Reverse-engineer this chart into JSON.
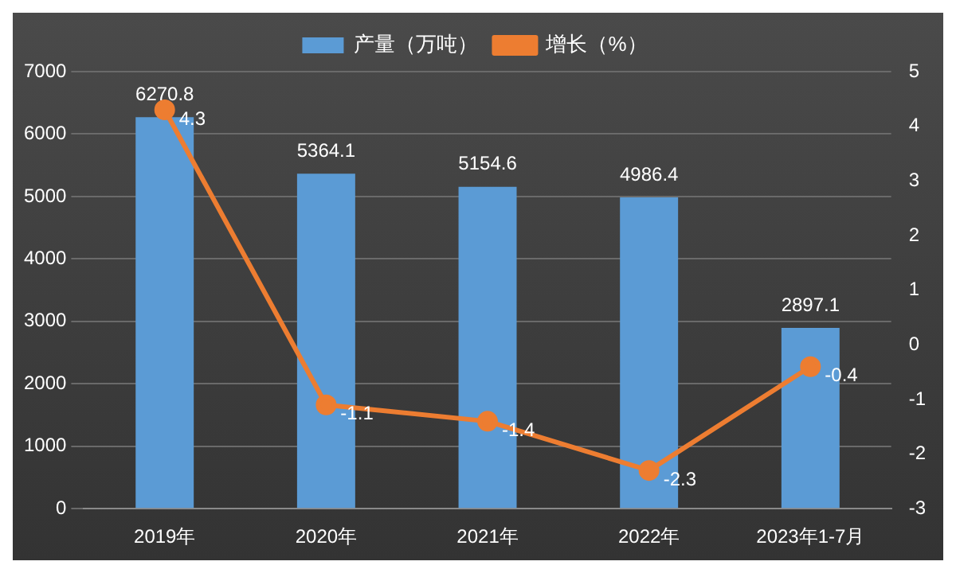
{
  "chart_data": {
    "type": "bar",
    "categories": [
      "2019年",
      "2020年",
      "2021年",
      "2022年",
      "2023年1-7月"
    ],
    "series": [
      {
        "name": "产量（万吨）",
        "color": "#5b9bd5",
        "values": [
          6270.8,
          5364.1,
          5154.6,
          4986.4,
          2897.1
        ]
      },
      {
        "name": "增长（%）",
        "type": "line",
        "axis": "y2",
        "color": "#ed7d31",
        "values": [
          4.3,
          -1.1,
          -1.4,
          -2.3,
          -0.4
        ]
      }
    ],
    "ylim": [
      0,
      7000
    ],
    "yticks": [
      0,
      1000,
      2000,
      3000,
      4000,
      5000,
      6000,
      7000
    ],
    "y2lim": [
      -3,
      5
    ],
    "y2ticks": [
      -3,
      -2,
      -1,
      0,
      1,
      2,
      3,
      4,
      5
    ],
    "grid": "y",
    "legend": "top",
    "marker": "circle",
    "data_labels": true
  }
}
